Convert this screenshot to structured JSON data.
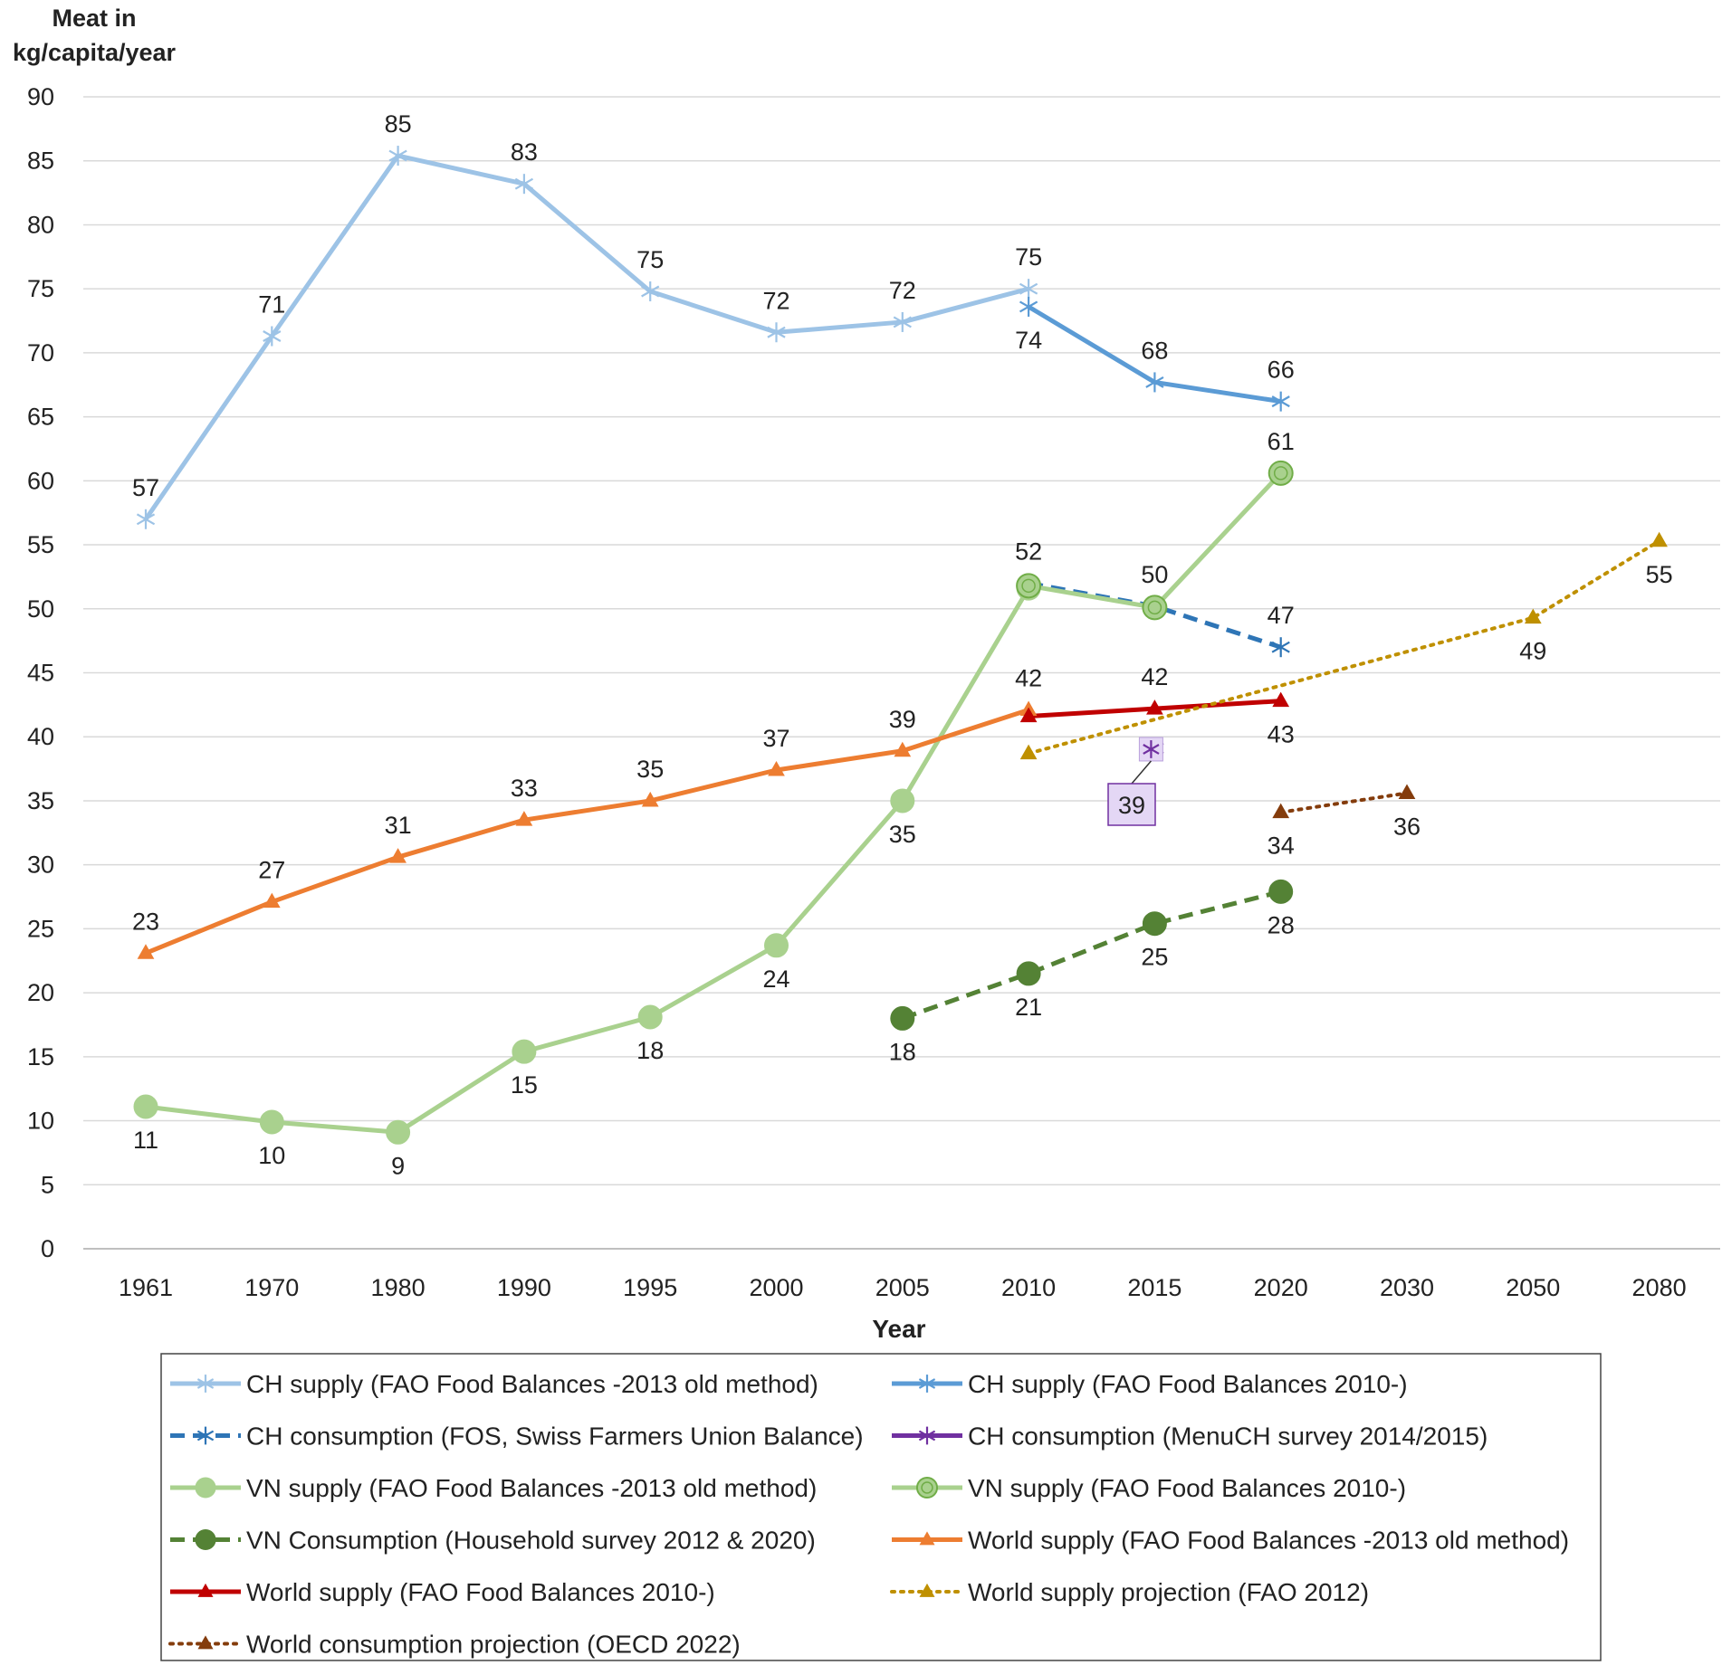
{
  "chart_data": {
    "type": "line",
    "ylabel_lines": [
      "Meat in",
      "kg/capita/year"
    ],
    "xlabel": "Year",
    "ylim": [
      0,
      90
    ],
    "ytick_step": 5,
    "categories": [
      "1961",
      "1970",
      "1980",
      "1990",
      "1995",
      "2000",
      "2005",
      "2010",
      "2015",
      "2020",
      "2030",
      "2050",
      "2080"
    ],
    "series": [
      {
        "name": "CH supply (FAO Food Balances -2013 old method)",
        "color": "#9dc3e6",
        "dash": "solid",
        "marker": "star",
        "marker_fill": "#9dc3e6",
        "points": [
          {
            "x": "1961",
            "y": 57,
            "label": "57",
            "pos": "above"
          },
          {
            "x": "1970",
            "y": 71.3,
            "label": "71",
            "pos": "above"
          },
          {
            "x": "1980",
            "y": 85.4,
            "label": "85",
            "pos": "above"
          },
          {
            "x": "1990",
            "y": 83.2,
            "label": "83",
            "pos": "above"
          },
          {
            "x": "1995",
            "y": 74.8,
            "label": "75",
            "pos": "above"
          },
          {
            "x": "2000",
            "y": 71.6,
            "label": "72",
            "pos": "above"
          },
          {
            "x": "2005",
            "y": 72.4,
            "label": "72",
            "pos": "above"
          },
          {
            "x": "2010",
            "y": 75,
            "label": "75",
            "pos": "above"
          }
        ]
      },
      {
        "name": "CH supply (FAO Food Balances 2010-)",
        "color": "#5b9bd5",
        "dash": "solid",
        "marker": "star",
        "marker_fill": "#5b9bd5",
        "points": [
          {
            "x": "2010",
            "y": 73.6,
            "label": "74",
            "pos": "below"
          },
          {
            "x": "2015",
            "y": 67.7,
            "label": "68",
            "pos": "above"
          },
          {
            "x": "2020",
            "y": 66.2,
            "label": "66",
            "pos": "above"
          }
        ]
      },
      {
        "name": "CH consumption (FOS, Swiss Farmers Union Balance)",
        "color": "#2e75b6",
        "dash": "dash",
        "marker": "star",
        "marker_fill": "#2e75b6",
        "points": [
          {
            "x": "2010",
            "y": 52,
            "label": "52",
            "pos": "above"
          },
          {
            "x": "2015",
            "y": 50.2,
            "label": "50",
            "pos": "above"
          },
          {
            "x": "2020",
            "y": 47,
            "label": "47",
            "pos": "above"
          }
        ]
      },
      {
        "name": "CH consumption (MenuCH survey 2014/2015)",
        "color": "#7030a0",
        "dash": "solid",
        "marker": "star",
        "marker_fill": "#7030a0",
        "points": [
          {
            "x": "2015",
            "y": 39.1,
            "label": "39",
            "pos": "callout"
          }
        ]
      },
      {
        "name": "VN supply (FAO Food Balances -2013 old method)",
        "color": "#a9d18e",
        "dash": "solid",
        "marker": "circle",
        "marker_fill": "#a9d18e",
        "points": [
          {
            "x": "1961",
            "y": 11.1,
            "label": "11",
            "pos": "below"
          },
          {
            "x": "1970",
            "y": 9.9,
            "label": "10",
            "pos": "below"
          },
          {
            "x": "1980",
            "y": 9.1,
            "label": "9",
            "pos": "below"
          },
          {
            "x": "1990",
            "y": 15.4,
            "label": "15",
            "pos": "below"
          },
          {
            "x": "1995",
            "y": 18.1,
            "label": "18",
            "pos": "below"
          },
          {
            "x": "2000",
            "y": 23.7,
            "label": "24",
            "pos": "below"
          },
          {
            "x": "2005",
            "y": 35,
            "label": "35",
            "pos": "below"
          },
          {
            "x": "2010",
            "y": 51.6,
            "label": "",
            "pos": "none"
          }
        ]
      },
      {
        "name": "VN supply (FAO Food Balances 2010-)",
        "color": "#a9d18e",
        "dash": "solid",
        "marker": "ringcircle",
        "marker_fill": "#a9d18e",
        "points": [
          {
            "x": "2010",
            "y": 51.8,
            "label": "",
            "pos": "none"
          },
          {
            "x": "2015",
            "y": 50.1,
            "label": "",
            "pos": "none"
          },
          {
            "x": "2020",
            "y": 60.6,
            "label": "61",
            "pos": "above"
          }
        ]
      },
      {
        "name": "VN Consumption (Household survey 2012 & 2020)",
        "color": "#548235",
        "dash": "dash",
        "marker": "circle",
        "marker_fill": "#548235",
        "points": [
          {
            "x": "2005",
            "y": 18,
            "label": "18",
            "pos": "below"
          },
          {
            "x": "2010",
            "y": 21.5,
            "label": "21",
            "pos": "below"
          },
          {
            "x": "2015",
            "y": 25.4,
            "label": "25",
            "pos": "below"
          },
          {
            "x": "2020",
            "y": 27.9,
            "label": "28",
            "pos": "below"
          }
        ]
      },
      {
        "name": "World supply (FAO Food Balances -2013 old method)",
        "color": "#ed7d31",
        "dash": "solid",
        "marker": "triangle",
        "marker_fill": "#ed7d31",
        "points": [
          {
            "x": "1961",
            "y": 23.1,
            "label": "23",
            "pos": "above"
          },
          {
            "x": "1970",
            "y": 27.1,
            "label": "27",
            "pos": "above"
          },
          {
            "x": "1980",
            "y": 30.6,
            "label": "31",
            "pos": "above"
          },
          {
            "x": "1990",
            "y": 33.5,
            "label": "33",
            "pos": "above"
          },
          {
            "x": "1995",
            "y": 35,
            "label": "35",
            "pos": "above"
          },
          {
            "x": "2000",
            "y": 37.4,
            "label": "37",
            "pos": "above"
          },
          {
            "x": "2005",
            "y": 38.9,
            "label": "39",
            "pos": "above"
          },
          {
            "x": "2010",
            "y": 42.1,
            "label": "42",
            "pos": "above"
          }
        ]
      },
      {
        "name": "World supply (FAO Food Balances 2010-)",
        "color": "#c00000",
        "dash": "solid",
        "marker": "triangle",
        "marker_fill": "#c00000",
        "points": [
          {
            "x": "2010",
            "y": 41.6,
            "label": "",
            "pos": "none"
          },
          {
            "x": "2015",
            "y": 42.2,
            "label": "42",
            "pos": "above"
          },
          {
            "x": "2020",
            "y": 42.8,
            "label": "43",
            "pos": "below"
          }
        ]
      },
      {
        "name": "World supply projection (FAO 2012)",
        "color": "#bf9000",
        "dash": "dot",
        "marker": "triangle",
        "marker_fill": "#bf9000",
        "points": [
          {
            "x": "2010",
            "y": 38.7,
            "label": "",
            "pos": "none"
          },
          {
            "x": "2050",
            "y": 49.3,
            "label": "49",
            "pos": "below"
          },
          {
            "x": "2080",
            "y": 55.3,
            "label": "55",
            "pos": "below"
          }
        ]
      },
      {
        "name": "World consumption projection (OECD 2022)",
        "color": "#843c0c",
        "dash": "dot",
        "marker": "triangle",
        "marker_fill": "#843c0c",
        "points": [
          {
            "x": "2020",
            "y": 34.1,
            "label": "34",
            "pos": "below"
          },
          {
            "x": "2030",
            "y": 35.6,
            "label": "36",
            "pos": "below"
          }
        ]
      }
    ]
  }
}
